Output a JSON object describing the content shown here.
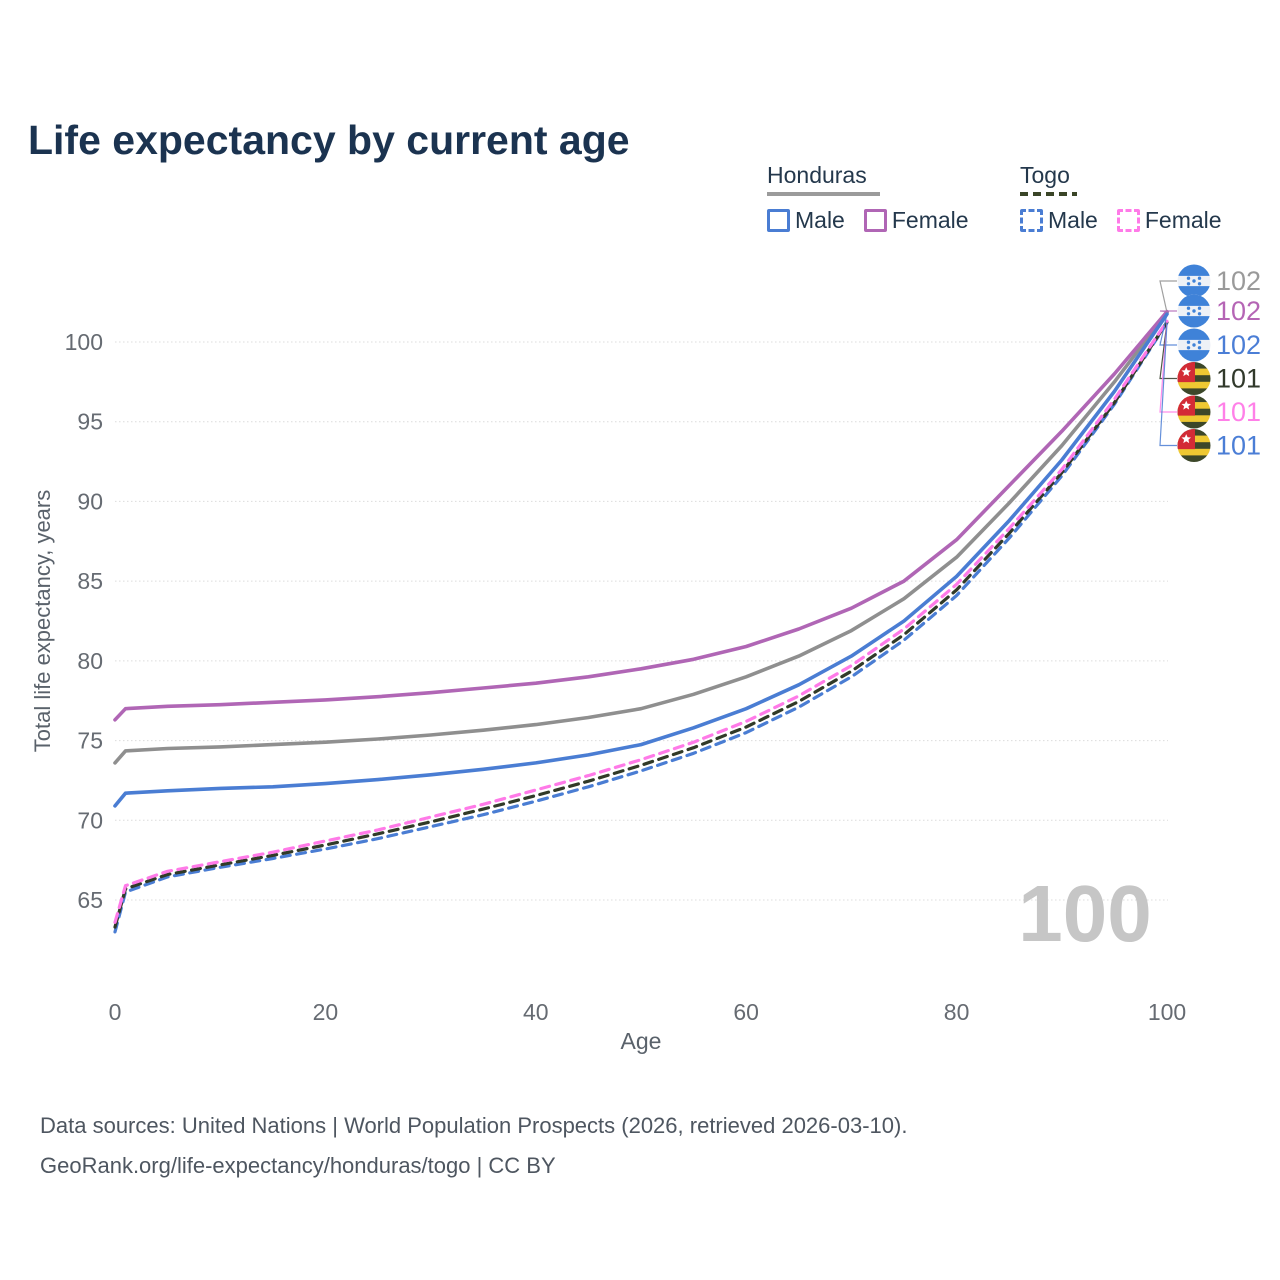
{
  "title": "Life expectancy by current age",
  "watermark": "100",
  "legend": {
    "groups": [
      {
        "country": "Honduras",
        "line_style": "solid",
        "underline_color": "#9b9b9b",
        "items": [
          {
            "label": "Male",
            "color": "#4a7dd3"
          },
          {
            "label": "Female",
            "color": "#b066b5"
          }
        ]
      },
      {
        "country": "Togo",
        "line_style": "dashed",
        "underline_color": "#3a4527",
        "items": [
          {
            "label": "Male",
            "color": "#4a7dd3"
          },
          {
            "label": "Female",
            "color": "#ff7ae8"
          }
        ]
      }
    ]
  },
  "chart_data": {
    "type": "line",
    "title": "Life expectancy by current age",
    "xlabel": "Age",
    "ylabel": "Total life expectancy, years",
    "xlim": [
      0,
      100
    ],
    "ylim": [
      65,
      100
    ],
    "xticks": [
      0,
      20,
      40,
      60,
      80,
      100
    ],
    "yticks": [
      65,
      70,
      75,
      80,
      85,
      90,
      95,
      100
    ],
    "grid": true,
    "legend_position": "top-right",
    "x": [
      0,
      1,
      5,
      10,
      15,
      20,
      25,
      30,
      35,
      40,
      45,
      50,
      55,
      60,
      65,
      70,
      75,
      80,
      85,
      90,
      95,
      100
    ],
    "series": [
      {
        "name": "Honduras All",
        "country": "honduras",
        "sex": "all",
        "color": "#8f8f8f",
        "dashed": false,
        "end_label": "102",
        "end_label_color": "#9a9a9a",
        "values": [
          73.6,
          74.35,
          74.5,
          74.6,
          74.75,
          74.9,
          75.1,
          75.35,
          75.65,
          76.0,
          76.45,
          77.0,
          77.9,
          79.0,
          80.3,
          81.9,
          83.9,
          86.5,
          89.9,
          93.5,
          97.5,
          101.85
        ]
      },
      {
        "name": "Honduras Female",
        "country": "honduras",
        "sex": "female",
        "color": "#b066b5",
        "dashed": false,
        "end_label": "102",
        "end_label_color": "#b565b5",
        "values": [
          76.3,
          77.0,
          77.15,
          77.25,
          77.4,
          77.55,
          77.75,
          78.0,
          78.3,
          78.6,
          79.0,
          79.5,
          80.1,
          80.9,
          82.0,
          83.3,
          85.0,
          87.6,
          91.0,
          94.4,
          98.0,
          101.9
        ]
      },
      {
        "name": "Honduras Male",
        "country": "honduras",
        "sex": "male",
        "color": "#4a7dd3",
        "dashed": false,
        "end_label": "102",
        "end_label_color": "#4b7ed6",
        "values": [
          70.9,
          71.7,
          71.85,
          72.0,
          72.1,
          72.3,
          72.55,
          72.85,
          73.2,
          73.6,
          74.1,
          74.75,
          75.8,
          77.0,
          78.5,
          80.3,
          82.5,
          85.3,
          88.8,
          92.6,
          96.9,
          101.75
        ]
      },
      {
        "name": "Togo Male",
        "country": "togo",
        "sex": "male",
        "color": "#4a7dd3",
        "dashed": true,
        "end_label": "101",
        "end_label_color": "#4b7ed6",
        "values": [
          63.0,
          65.5,
          66.45,
          67.05,
          67.6,
          68.2,
          68.85,
          69.6,
          70.35,
          71.2,
          72.1,
          73.1,
          74.2,
          75.5,
          77.1,
          79.0,
          81.3,
          84.1,
          87.7,
          91.6,
          96.1,
          101.2
        ]
      },
      {
        "name": "Togo All",
        "country": "togo",
        "sex": "all",
        "color": "#313a28",
        "dashed": true,
        "end_label": "101",
        "end_label_color": "#31392b",
        "values": [
          63.3,
          65.7,
          66.6,
          67.2,
          67.8,
          68.45,
          69.15,
          69.9,
          70.7,
          71.55,
          72.45,
          73.45,
          74.55,
          75.85,
          77.45,
          79.35,
          81.65,
          84.45,
          88.0,
          91.8,
          96.2,
          101.25
        ]
      },
      {
        "name": "Togo Female",
        "country": "togo",
        "sex": "female",
        "color": "#ff7ae8",
        "dashed": true,
        "end_label": "101",
        "end_label_color": "#ff80e8",
        "values": [
          63.6,
          65.9,
          66.8,
          67.4,
          68.0,
          68.7,
          69.4,
          70.2,
          71.0,
          71.9,
          72.8,
          73.8,
          74.9,
          76.2,
          77.8,
          79.7,
          82.0,
          84.8,
          88.3,
          92.0,
          96.4,
          101.3
        ]
      }
    ],
    "end_label_order": [
      "Honduras All",
      "Honduras Female",
      "Honduras Male",
      "Togo All",
      "Togo Female",
      "Togo Male"
    ]
  },
  "flags": {
    "honduras": {
      "blue": "#3f82d8",
      "white": "#eef1f6"
    },
    "togo": {
      "green": "#3c4729",
      "yellow": "#eec832",
      "red": "#d32b36",
      "star": "#ffffff"
    }
  },
  "source": {
    "line1": "Data sources: United Nations | World Population Prospects (2026, retrieved 2026-03-10).",
    "line2": "GeoRank.org/life-expectancy/honduras/togo | CC BY"
  }
}
